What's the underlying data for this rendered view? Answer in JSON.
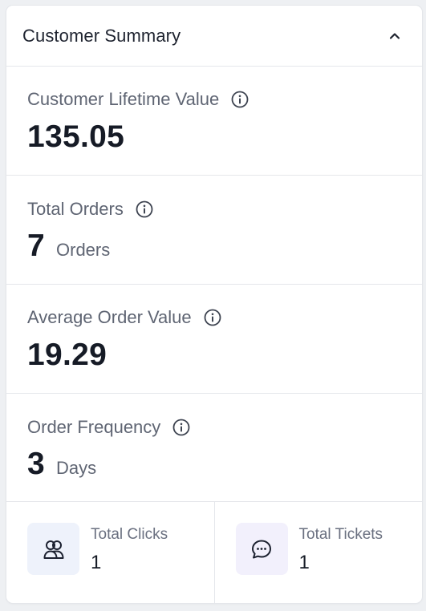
{
  "panel": {
    "title": "Customer Summary",
    "collapse_icon": "chevron-up-icon"
  },
  "metrics": [
    {
      "label": "Customer Lifetime Value",
      "value": "135.05",
      "unit": ""
    },
    {
      "label": "Total Orders",
      "value": "7",
      "unit": "Orders"
    },
    {
      "label": "Average Order Value",
      "value": "19.29",
      "unit": ""
    },
    {
      "label": "Order Frequency",
      "value": "3",
      "unit": "Days"
    }
  ],
  "tiles": [
    {
      "label": "Total Clicks",
      "value": "1",
      "icon": "users-icon",
      "bg": "#eef2fb"
    },
    {
      "label": "Total Tickets",
      "value": "1",
      "icon": "chat-bubble-icon",
      "bg": "#f2f0fc"
    }
  ],
  "colors": {
    "text_primary": "#161b26",
    "text_secondary": "#5f6573",
    "border": "#e5e7eb"
  }
}
